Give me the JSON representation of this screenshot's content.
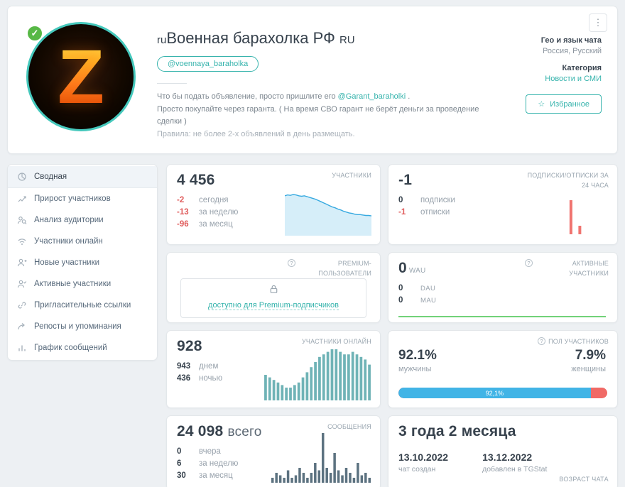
{
  "icons": {
    "kebab": "⋮",
    "check": "✓",
    "star": "☆",
    "info": "?"
  },
  "colors": {
    "accent_teal": "#35b3ac",
    "ring_teal": "#45c8bc",
    "negative_red": "#e05b5b",
    "chart_blue": "#36a9e0",
    "chart_blue_fill": "#d6eef9",
    "chart_red": "#f07470",
    "chart_green": "#43c34d",
    "chart_teal": "#6fb3b6",
    "chart_slate": "#5c7280",
    "gender_blue": "#41b4e6",
    "gender_red": "#f06a66",
    "verified_green": "#57b846"
  },
  "header": {
    "avatar_letter": "Z",
    "title_prefix": "ru",
    "title": "Военная барахолка РФ",
    "title_suffix": "RU",
    "username": "@voennaya_baraholka",
    "description": {
      "line1_pre": "Что бы подать объявление, просто пришлите его ",
      "line1_link": "@Garant_baraholki",
      "line1_post": " .",
      "line2": "Просто покупайте через гаранта. ( На время СВО гарант не берёт деньги за проведение сделки )",
      "line3": "Правила: не более 2-х объявлений в день размещать."
    },
    "info": {
      "geo_label": "Гео и язык чата",
      "geo_value": "Россия, Русский",
      "category_label": "Категория",
      "category_value": "Новости и СМИ"
    },
    "favorite_button": "Избранное"
  },
  "sidebar": {
    "items": [
      {
        "label": "Сводная"
      },
      {
        "label": "Прирост участников"
      },
      {
        "label": "Анализ аудитории"
      },
      {
        "label": "Участники онлайн"
      },
      {
        "label": "Новые участники"
      },
      {
        "label": "Активные участники"
      },
      {
        "label": "Пригласительные ссылки"
      },
      {
        "label": "Репосты и упоминания"
      },
      {
        "label": "График сообщений"
      }
    ]
  },
  "cards": {
    "members": {
      "value": "4 456",
      "label": "УЧАСТНИКИ",
      "rows": [
        {
          "value": "-2",
          "label": "сегодня"
        },
        {
          "value": "-13",
          "label": "за неделю"
        },
        {
          "value": "-96",
          "label": "за месяц"
        }
      ]
    },
    "subscriptions": {
      "value": "-1",
      "label": "ПОДПИСКИ/ОТПИСКИ ЗА 24 ЧАСА",
      "rows": [
        {
          "value": "0",
          "label": "подписки"
        },
        {
          "value": "-1",
          "label": "отписки"
        }
      ]
    },
    "premium": {
      "label": "PREMIUM-ПОЛЬЗОВАТЕЛИ",
      "link": "доступно для Premium-подписчиков"
    },
    "active": {
      "value": "0",
      "unit": "WAU",
      "label": "АКТИВНЫЕ УЧАСТНИКИ",
      "rows": [
        {
          "value": "0",
          "label": "DAU"
        },
        {
          "value": "0",
          "label": "MAU"
        }
      ]
    },
    "online": {
      "value": "928",
      "label": "УЧАСТНИКИ ОНЛАЙН",
      "rows": [
        {
          "value": "943",
          "label": "днем"
        },
        {
          "value": "436",
          "label": "ночью"
        }
      ]
    },
    "gender": {
      "label": "ПОЛ УЧАСТНИКОВ",
      "male_value": "92.1%",
      "male_label": "мужчины",
      "female_value": "7.9%",
      "female_label": "женщины",
      "bar_text": "92,1%",
      "male_pct": 92.1
    },
    "messages": {
      "value": "24 098",
      "suffix": "всего",
      "label": "СООБЩЕНИЯ",
      "rows": [
        {
          "value": "0",
          "label": "вчера"
        },
        {
          "value": "6",
          "label": "за неделю"
        },
        {
          "value": "30",
          "label": "за месяц"
        }
      ]
    },
    "age": {
      "value": "3 года 2 месяца",
      "label": "ВОЗРАСТ ЧАТА",
      "created_value": "13.10.2022",
      "created_label": "чат создан",
      "added_value": "13.12.2022",
      "added_label": "добавлен в TGStat"
    }
  },
  "charts": {
    "members_trend": {
      "type": "area",
      "color": "#36a9e0",
      "fill": "#d6eef9",
      "values": [
        90,
        92,
        91,
        93,
        92,
        90,
        89,
        90,
        88,
        86,
        84,
        82,
        79,
        76,
        73,
        70,
        67,
        64,
        62,
        59,
        57,
        54,
        52,
        50,
        49,
        47,
        46,
        46,
        45,
        44,
        44,
        43
      ]
    },
    "subs_bars": {
      "type": "bar",
      "color": "#f07470",
      "values": [
        0,
        0,
        0,
        0,
        0,
        0,
        0,
        0,
        0,
        0,
        0,
        0,
        0,
        0,
        0,
        10,
        0,
        2.5,
        0,
        0,
        0,
        0,
        0,
        0
      ]
    },
    "active_line": {
      "type": "line",
      "color": "#43c34d",
      "values": [
        0,
        0,
        0,
        0,
        0,
        0,
        0,
        0,
        0,
        0
      ]
    },
    "online_bars": {
      "type": "bar",
      "color": "#6fb3b6",
      "values": [
        5,
        4.5,
        4,
        3.5,
        3,
        2.5,
        2.5,
        3,
        3.5,
        4.5,
        5.5,
        6.5,
        7.5,
        8.5,
        9,
        9.5,
        10,
        10,
        9.5,
        9,
        9,
        9.5,
        9,
        8.5,
        8,
        7
      ]
    },
    "messages_bars": {
      "type": "bar",
      "color": "#5c7280",
      "values": [
        1,
        2,
        1.5,
        1,
        2.5,
        1,
        1.5,
        3,
        2,
        1,
        2,
        4,
        2.5,
        10,
        3,
        2,
        6,
        2.5,
        1.5,
        3,
        2,
        1,
        4,
        1.5,
        2,
        1
      ]
    }
  }
}
